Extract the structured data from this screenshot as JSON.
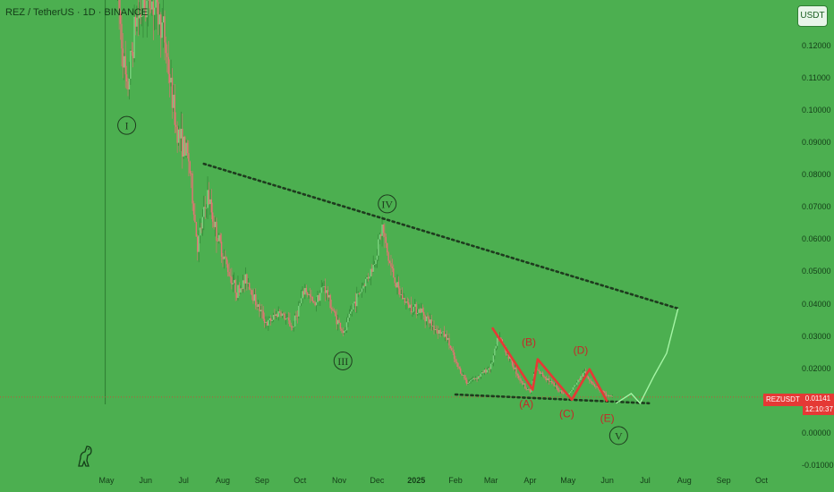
{
  "header": {
    "title": "REZ / TetherUS · 1D · BINANCE"
  },
  "currency_button": "USDT",
  "price_tag": {
    "symbol": "REZUSDT",
    "price": "0.01141",
    "countdown": "12:10:37"
  },
  "colors": {
    "background": "#4caf50",
    "up": "#4caf50",
    "down": "#ef5350",
    "trendline": "#1e3b1e",
    "projection": "#a5f5a5",
    "pattern": "#e53935",
    "price_line": "#e53935"
  },
  "chart_data": {
    "type": "candlestick",
    "title": "REZ / TetherUS · 1D · BINANCE",
    "y_tick_labels": [
      "0.12000",
      "0.11000",
      "0.10000",
      "0.09000",
      "0.08000",
      "0.07000",
      "0.06000",
      "0.05000",
      "0.04000",
      "0.03000",
      "0.02000",
      "0.01000",
      "0.00000",
      "-0.01000"
    ],
    "y_tick_values": [
      0.12,
      0.11,
      0.1,
      0.09,
      0.08,
      0.07,
      0.06,
      0.05,
      0.04,
      0.03,
      0.02,
      0.01,
      0.0,
      -0.01
    ],
    "ylim": [
      -0.0105,
      0.1343
    ],
    "x_tick_labels": [
      "May",
      "Jun",
      "Jul",
      "Aug",
      "Sep",
      "Oct",
      "Nov",
      "Dec",
      "2025",
      "Feb",
      "Mar",
      "Apr",
      "May",
      "Jun",
      "Jul",
      "Aug",
      "Sep",
      "Oct"
    ],
    "x_tick_dates": [
      "2024-05-01",
      "2024-06-01",
      "2024-07-01",
      "2024-08-01",
      "2024-09-01",
      "2024-10-01",
      "2024-11-01",
      "2024-12-01",
      "2025-01-01",
      "2025-02-01",
      "2025-03-01",
      "2025-04-01",
      "2025-05-01",
      "2025-06-01",
      "2025-07-01",
      "2025-08-01",
      "2025-09-01",
      "2025-10-01"
    ],
    "listing_date": "2024-04-30",
    "last_price": 0.01141,
    "price_path": [
      [
        "2024-05-10",
        0.135
      ],
      [
        "2024-05-17",
        0.105
      ],
      [
        "2024-05-24",
        0.128
      ],
      [
        "2024-06-05",
        0.135
      ],
      [
        "2024-06-15",
        0.125
      ],
      [
        "2024-06-25",
        0.095
      ],
      [
        "2024-07-05",
        0.085
      ],
      [
        "2024-07-12",
        0.058
      ],
      [
        "2024-07-20",
        0.074
      ],
      [
        "2024-07-27",
        0.062
      ],
      [
        "2024-08-05",
        0.051
      ],
      [
        "2024-08-12",
        0.044
      ],
      [
        "2024-08-20",
        0.048
      ],
      [
        "2024-08-28",
        0.04
      ],
      [
        "2024-09-05",
        0.034
      ],
      [
        "2024-09-15",
        0.038
      ],
      [
        "2024-09-25",
        0.033
      ],
      [
        "2024-10-05",
        0.045
      ],
      [
        "2024-10-12",
        0.04
      ],
      [
        "2024-10-20",
        0.046
      ],
      [
        "2024-10-28",
        0.037
      ],
      [
        "2024-11-05",
        0.031
      ],
      [
        "2024-11-12",
        0.04
      ],
      [
        "2024-11-20",
        0.046
      ],
      [
        "2024-11-28",
        0.052
      ],
      [
        "2024-12-05",
        0.064
      ],
      [
        "2024-12-10",
        0.054
      ],
      [
        "2024-12-18",
        0.044
      ],
      [
        "2024-12-25",
        0.04
      ],
      [
        "2025-01-05",
        0.038
      ],
      [
        "2025-01-15",
        0.033
      ],
      [
        "2025-01-25",
        0.03
      ],
      [
        "2025-02-01",
        0.022
      ],
      [
        "2025-02-10",
        0.016
      ],
      [
        "2025-02-20",
        0.018
      ],
      [
        "2025-03-01",
        0.021
      ],
      [
        "2025-03-07",
        0.03
      ],
      [
        "2025-03-15",
        0.024
      ],
      [
        "2025-03-25",
        0.016
      ],
      [
        "2025-04-01",
        0.013
      ],
      [
        "2025-04-05",
        0.02
      ],
      [
        "2025-04-15",
        0.017
      ],
      [
        "2025-04-22",
        0.014
      ],
      [
        "2025-05-01",
        0.012
      ],
      [
        "2025-05-08",
        0.016
      ],
      [
        "2025-05-14",
        0.019
      ],
      [
        "2025-05-22",
        0.015
      ],
      [
        "2025-05-31",
        0.012
      ],
      [
        "2025-06-05",
        0.0115
      ]
    ],
    "wave_labels": [
      {
        "label": "I",
        "date": "2024-05-17",
        "price": 0.0955
      },
      {
        "label": "III",
        "date": "2024-11-04",
        "price": 0.0226
      },
      {
        "label": "IV",
        "date": "2024-12-09",
        "price": 0.0712
      },
      {
        "label": "V",
        "date": "2025-06-10",
        "price": -0.0005
      }
    ],
    "correction_labels": [
      {
        "label": "(A)",
        "date": "2025-03-29",
        "price": 0.0082
      },
      {
        "label": "(B)",
        "date": "2025-03-31",
        "price": 0.0273
      },
      {
        "label": "(C)",
        "date": "2025-04-30",
        "price": 0.0052
      },
      {
        "label": "(D)",
        "date": "2025-05-11",
        "price": 0.0248
      },
      {
        "label": "(E)",
        "date": "2025-06-01",
        "price": 0.0037
      }
    ],
    "pattern_line": [
      [
        "2025-03-02",
        0.0329
      ],
      [
        "2025-04-03",
        0.0137
      ],
      [
        "2025-04-07",
        0.0231
      ],
      [
        "2025-05-04",
        0.0106
      ],
      [
        "2025-05-18",
        0.02
      ],
      [
        "2025-06-01",
        0.01
      ]
    ],
    "resistance_line": [
      [
        "2024-07-17",
        0.0836
      ],
      [
        "2025-07-27",
        0.0388
      ]
    ],
    "support_line": [
      [
        "2025-02-01",
        0.0122
      ],
      [
        "2025-07-04",
        0.0095
      ]
    ],
    "projection_path": [
      [
        "2025-06-08",
        0.0095
      ],
      [
        "2025-06-20",
        0.0125
      ],
      [
        "2025-06-27",
        0.0095
      ],
      [
        "2025-07-08",
        0.018
      ],
      [
        "2025-07-18",
        0.025
      ],
      [
        "2025-07-27",
        0.0388
      ]
    ]
  }
}
